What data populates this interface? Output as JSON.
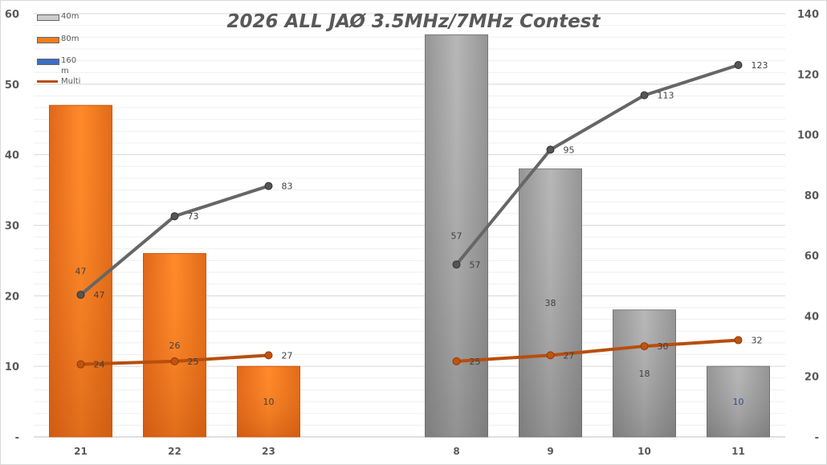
{
  "chart_data": {
    "type": "bar",
    "title": "2026 ALL JAØ  3.5MHz/7MHz Contest",
    "categories": [
      "21",
      "22",
      "23",
      "",
      "8",
      "9",
      "10",
      "11"
    ],
    "left_axis": {
      "range": [
        0,
        60
      ],
      "ticks": [
        "-",
        "10",
        "20",
        "30",
        "40",
        "50",
        "60"
      ]
    },
    "right_axis": {
      "range": [
        0,
        140
      ],
      "ticks": [
        "-",
        "20",
        "40",
        "60",
        "80",
        "100",
        "120",
        "140"
      ]
    },
    "bar_series": [
      {
        "name": "40m",
        "color": "#9e9e9e",
        "values": [
          null,
          null,
          null,
          null,
          57,
          38,
          18,
          10
        ],
        "labels": [
          "",
          "",
          "",
          "",
          "57",
          "38",
          "18",
          "10"
        ]
      },
      {
        "name": "80m",
        "color": "#f07d1a",
        "values": [
          47,
          26,
          10,
          null,
          null,
          null,
          null,
          null
        ],
        "labels": [
          "47",
          "26",
          "10",
          "",
          "",
          "",
          "",
          ""
        ]
      },
      {
        "name": "160m",
        "color": "#3a6fc4",
        "values": [
          null,
          null,
          null,
          null,
          null,
          null,
          null,
          null
        ],
        "labels": [
          "",
          "",
          "",
          "",
          "",
          "",
          "",
          ""
        ]
      }
    ],
    "line_series": [
      {
        "name": "",
        "axis": "right",
        "color": "#666666",
        "values": [
          47,
          73,
          83,
          null,
          57,
          95,
          113,
          123
        ],
        "labels": [
          "47",
          "73",
          "83",
          "",
          "57",
          "95",
          "113",
          "123"
        ]
      },
      {
        "name": "Multi",
        "axis": "right",
        "color": "#b84e0c",
        "values": [
          24,
          25,
          27,
          null,
          25,
          27,
          30,
          32
        ],
        "labels": [
          "24",
          "25",
          "27",
          "",
          "25",
          "27",
          "30",
          "32"
        ]
      }
    ],
    "legend_position": "top-left",
    "grid": true
  },
  "legend": [
    {
      "label": "40m",
      "color": "#9e9e9e"
    },
    {
      "label": "80m",
      "color": "#f07d1a"
    },
    {
      "label": "160m",
      "color": "#3a6fc4"
    },
    {
      "label": "Multi",
      "color": "#b84e0c"
    }
  ]
}
